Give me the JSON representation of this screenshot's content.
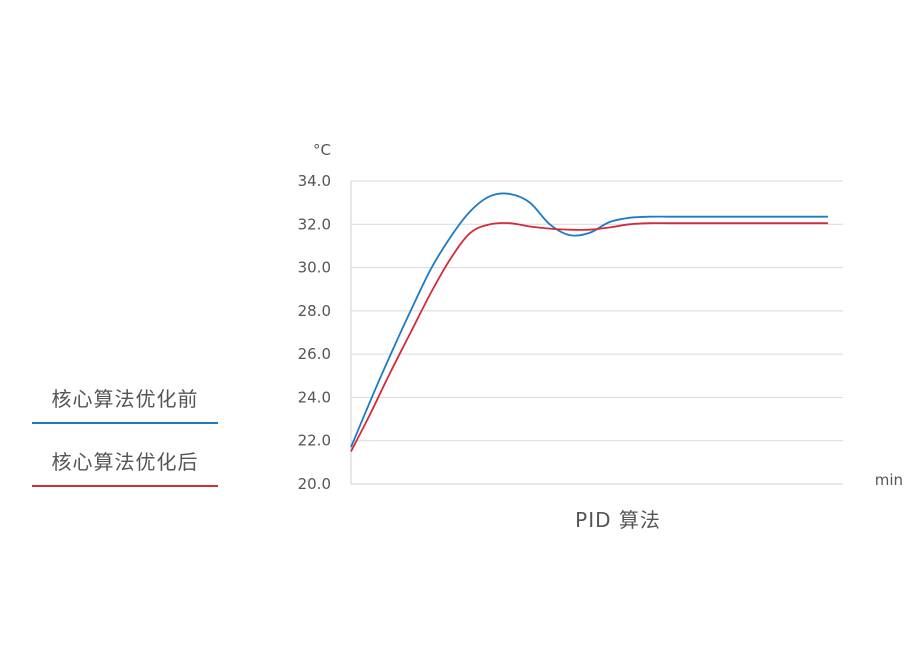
{
  "chart_data": {
    "type": "line",
    "xlabel": "PID 算法",
    "x_unit": "min",
    "y_unit": "°C",
    "ylim": [
      20.0,
      34.0
    ],
    "yticks": [
      "20.0",
      "22.0",
      "24.0",
      "26.0",
      "28.0",
      "30.0",
      "32.0",
      "34.0"
    ],
    "grid": true,
    "legend_position": "left",
    "x": [
      0,
      1,
      2,
      3,
      4,
      5,
      6,
      7,
      8,
      9,
      10,
      11,
      12,
      13,
      14,
      15,
      16,
      17,
      18,
      19,
      20,
      21,
      22,
      23,
      24
    ],
    "series": [
      {
        "name": "核心算法优化前",
        "color": "#1B7BC7",
        "values": [
          21.7,
          23.9,
          26.0,
          28.0,
          29.9,
          31.4,
          32.6,
          33.3,
          33.4,
          33.0,
          32.0,
          31.5,
          31.6,
          32.1,
          32.3,
          32.35,
          32.35,
          32.35,
          32.35,
          32.35,
          32.35,
          32.35,
          32.35,
          32.35,
          32.35
        ]
      },
      {
        "name": "核心算法优化后",
        "color": "#D42B3A",
        "values": [
          21.5,
          23.3,
          25.2,
          27.0,
          28.8,
          30.4,
          31.6,
          32.0,
          32.05,
          31.9,
          31.8,
          31.75,
          31.75,
          31.85,
          32.0,
          32.05,
          32.05,
          32.05,
          32.05,
          32.05,
          32.05,
          32.05,
          32.05,
          32.05,
          32.05
        ]
      }
    ]
  }
}
